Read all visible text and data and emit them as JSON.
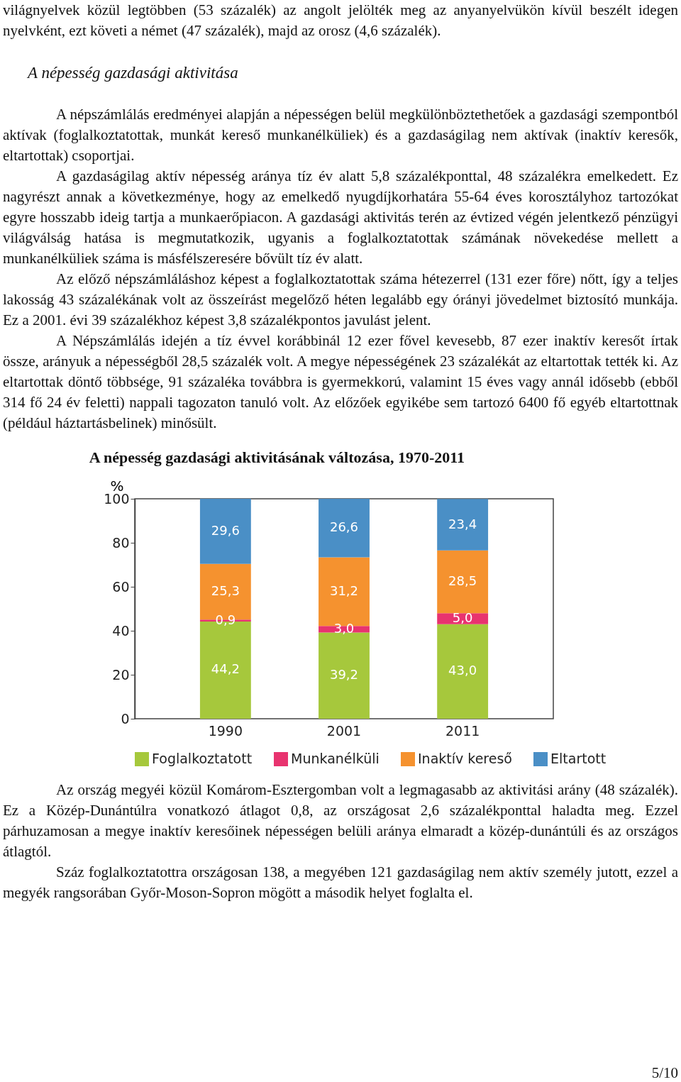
{
  "chart_data": {
    "type": "bar",
    "stacked": true,
    "title": "A népesség gazdasági aktivitásának változása, 1970-2011",
    "ylabel": "%",
    "categories": [
      "1990",
      "2001",
      "2011"
    ],
    "series": [
      {
        "name": "Foglalkoztatott",
        "color": "#a6c83c",
        "values": [
          44.2,
          39.2,
          43.0
        ],
        "value_labels": [
          "44,2",
          "39,2",
          "43,0"
        ]
      },
      {
        "name": "Munkanélküli",
        "color": "#e8336f",
        "values": [
          0.9,
          3.0,
          5.0
        ],
        "value_labels": [
          "0,9",
          "3,0",
          "5,0"
        ]
      },
      {
        "name": "Inaktív kereső",
        "color": "#f5922f",
        "values": [
          25.3,
          31.2,
          28.5
        ],
        "value_labels": [
          "25,3",
          "31,2",
          "28,5"
        ]
      },
      {
        "name": "Eltartott",
        "color": "#4a8fc6",
        "values": [
          29.6,
          26.6,
          23.4
        ],
        "value_labels": [
          "29,6",
          "26,6",
          "23,4"
        ]
      }
    ],
    "ylim": [
      0,
      100
    ],
    "yticks": [
      0,
      20,
      40,
      60,
      80,
      100
    ],
    "grid": false,
    "legend": "bottom",
    "annotations": [
      "világnyelvek közül legtöbben (53 százalék) az angolt jelölték meg az anyanyelvükön kívül beszélt idegen nyelvként, ezt követi a német (47 százalék), majd az orosz (4,6 százalék).",
      "A népesség gazdasági aktivitása",
      "A népszámlálás eredményei alapján a népességen belül megkülönböztethetőek a gazdasági szempontból aktívak (foglalkoztatottak, munkát kereső munkanélküliek) és a gazdaságilag nem aktívak (inaktív keresők, eltartottak) csoportjai.",
      "A gazdaságilag aktív népesség aránya tíz év alatt 5,8 százalékponttal, 48 százalékra emelkedett. Ez nagyrészt annak a következménye, hogy az emelkedő nyugdíjkorhatára 55-64 éves korosztályhoz tartozókat egyre hosszabb ideig tartja a munkaerőpiacon. A gazdasági aktivitás terén az évtized végén jelentkező pénzügyi világválság hatása is megmutatkozik, ugyanis a foglalkoztatottak számának növekedése mellett a munkanélküliek száma is másfélszeresére bővült tíz év alatt.",
      "Az előző népszámláláshoz képest a foglalkoztatottak száma hétezerrel (131 ezer főre) nőtt, így a teljes lakosság 43 százalékának volt az összeírást megelőző héten legalább egy órányi jövedelmet biztosító munkája. Ez a 2001. évi 39 százalékhoz képest 3,8 százalékpontos javulást jelent.",
      "A Népszámlálás idején a tíz évvel korábbinál 12 ezer fővel kevesebb, 87 ezer inaktív keresőt írtak össze, arányuk a népességből 28,5 százalék volt. A megye népességének 23 százalékát az eltartottak tették ki. Az eltartottak döntő többsége, 91 százaléka továbbra is gyermekkorú, valamint 15 éves vagy annál idősebb (ebből 314 fő 24 év feletti) nappali tagozaton tanuló volt. Az előzőek egyikébe sem tartozó 6400 fő egyéb eltartottnak (például háztartásbelinek) minősült.",
      "Az ország megyéi közül Komárom-Esztergomban volt a legmagasabb az aktivitási arány (48 százalék). Ez a Közép-Dunántúlra vonatkozó átlagot 0,8, az országosat 2,6 százalékponttal haladta meg. Ezzel párhuzamosan a megye inaktív keresőinek népességen belüli aránya elmaradt a közép-dunántúli és az országos átlagtól.",
      "Száz foglalkoztatottra országosan 138, a megyében 121 gazdaságilag nem aktív személy jutott, ezzel a megyék rangsorában Győr-Moson-Sopron mögött a második helyet foglalta el.",
      "5/10"
    ]
  }
}
